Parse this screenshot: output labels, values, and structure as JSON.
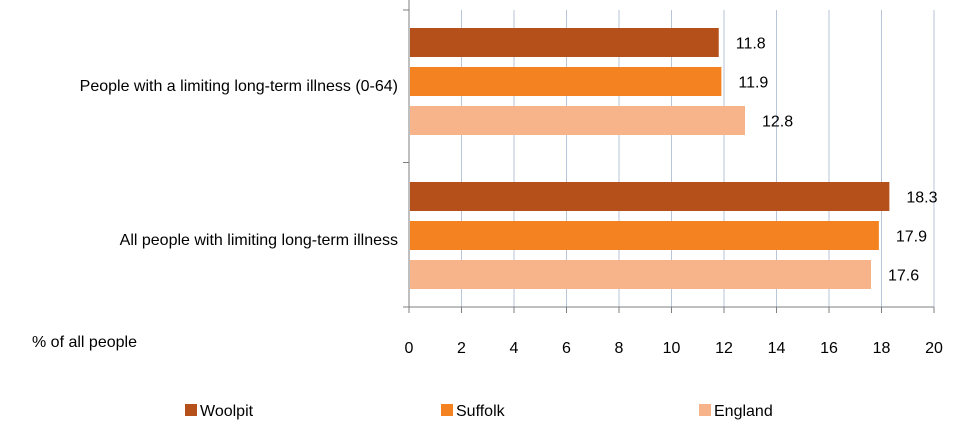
{
  "chart_data": {
    "type": "bar",
    "orientation": "horizontal",
    "categories": [
      "People with a limiting long-term illness (0-64)",
      "All people with limiting long-term illness"
    ],
    "series": [
      {
        "name": "Woolpit",
        "color": "#B5501A",
        "values": [
          11.8,
          18.3
        ]
      },
      {
        "name": "Suffolk",
        "color": "#F58220",
        "values": [
          11.9,
          17.9
        ]
      },
      {
        "name": "England",
        "color": "#F7B48A",
        "values": [
          12.8,
          17.6
        ]
      }
    ],
    "value_labels": [
      [
        "11.8",
        "18.3"
      ],
      [
        "11.9",
        "17.9"
      ],
      [
        "12.8",
        "17.6"
      ]
    ],
    "xlabel": "% of all people",
    "xlim": [
      0,
      20
    ],
    "xticks": [
      "0",
      "2",
      "4",
      "6",
      "8",
      "10",
      "12",
      "14",
      "16",
      "18",
      "20"
    ],
    "grid": "vertical",
    "legend": "bottom"
  }
}
